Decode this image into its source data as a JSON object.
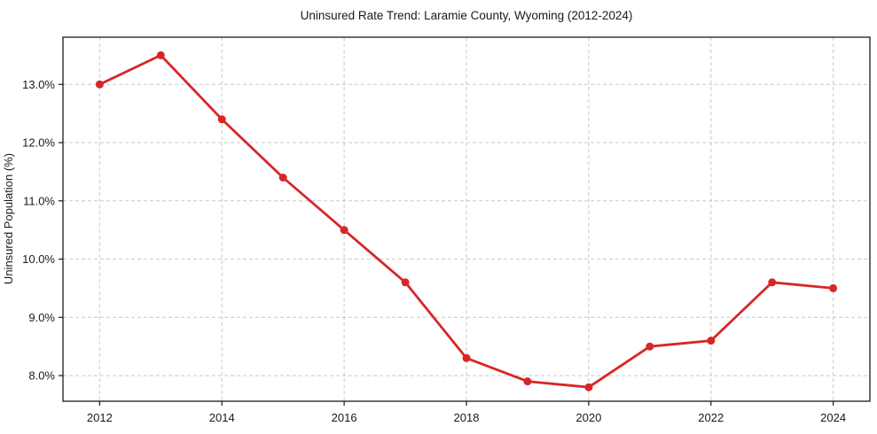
{
  "chart_data": {
    "type": "line",
    "title": "Uninsured Rate Trend: Laramie County, Wyoming (2012-2024)",
    "xlabel": "",
    "ylabel": "Uninsured Population (%)",
    "x": [
      2012,
      2013,
      2014,
      2015,
      2016,
      2017,
      2018,
      2019,
      2020,
      2021,
      2022,
      2023,
      2024
    ],
    "values": [
      13.0,
      13.5,
      12.4,
      11.4,
      10.5,
      9.6,
      8.3,
      7.9,
      7.8,
      8.5,
      8.6,
      9.6,
      9.5
    ],
    "xticks": [
      2012,
      2014,
      2016,
      2018,
      2020,
      2022,
      2024
    ],
    "ytick_labels": [
      "8.0%",
      "9.0%",
      "10.0%",
      "11.0%",
      "12.0%",
      "13.0%"
    ],
    "xlim": [
      2011.4,
      2024.6
    ],
    "ylim": [
      7.56,
      13.81
    ],
    "grid": true,
    "legend": "none",
    "line_color": "#d62728",
    "marker": "circle",
    "grid_color": "#c9c9c9",
    "spine_color": "#1a1a1a",
    "text_color": "#1a1a1a",
    "background_color": "#ffffff"
  }
}
